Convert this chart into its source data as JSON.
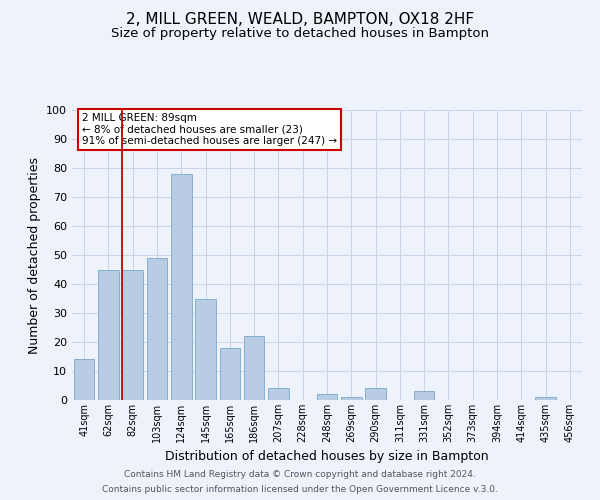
{
  "title": "2, MILL GREEN, WEALD, BAMPTON, OX18 2HF",
  "subtitle": "Size of property relative to detached houses in Bampton",
  "xlabel": "Distribution of detached houses by size in Bampton",
  "ylabel": "Number of detached properties",
  "bar_labels": [
    "41sqm",
    "62sqm",
    "82sqm",
    "103sqm",
    "124sqm",
    "145sqm",
    "165sqm",
    "186sqm",
    "207sqm",
    "228sqm",
    "248sqm",
    "269sqm",
    "290sqm",
    "311sqm",
    "331sqm",
    "352sqm",
    "373sqm",
    "394sqm",
    "414sqm",
    "435sqm",
    "456sqm"
  ],
  "bar_values": [
    14,
    45,
    45,
    49,
    78,
    35,
    18,
    22,
    4,
    0,
    2,
    1,
    4,
    0,
    3,
    0,
    0,
    0,
    0,
    1,
    0
  ],
  "bar_color": "#b8cce4",
  "bar_edge_color": "#7aa8cc",
  "background_color": "#eef2fb",
  "grid_color": "#c8d4e8",
  "vline_x_index": 2,
  "vline_color": "#cc0000",
  "annotation_title": "2 MILL GREEN: 89sqm",
  "annotation_line1": "← 8% of detached houses are smaller (23)",
  "annotation_line2": "91% of semi-detached houses are larger (247) →",
  "annotation_box_color": "#ffffff",
  "annotation_border_color": "#cc0000",
  "ylim": [
    0,
    100
  ],
  "title_fontsize": 11,
  "subtitle_fontsize": 9.5,
  "footer1": "Contains HM Land Registry data © Crown copyright and database right 2024.",
  "footer2": "Contains public sector information licensed under the Open Government Licence v.3.0."
}
